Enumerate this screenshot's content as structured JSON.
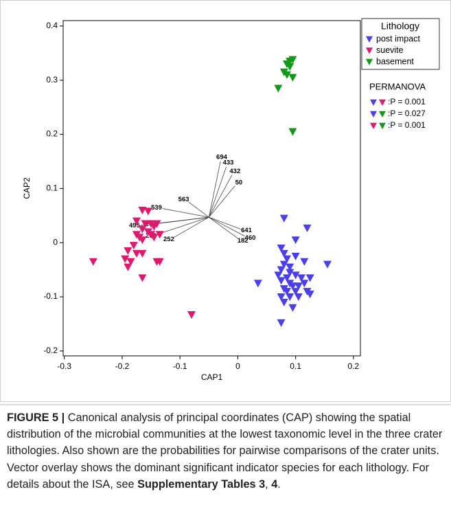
{
  "chart_data": {
    "type": "scatter",
    "xlabel": "CAP1",
    "ylabel": "CAP2",
    "xlim": [
      -0.302,
      0.212
    ],
    "ylim": [
      -0.209,
      0.41
    ],
    "xticks": [
      -0.3,
      -0.2,
      -0.1,
      0,
      0.1,
      0.2
    ],
    "yticks": [
      -0.2,
      -0.1,
      0,
      0.1,
      0.2,
      0.3,
      0.4
    ],
    "legend_title": "Lithology",
    "legend": "upper right outside",
    "series": [
      {
        "name": "post impact",
        "color": "#4a3ff0",
        "x": [
          0.08,
          0.12,
          0.1,
          0.155,
          0.075,
          0.08,
          0.085,
          0.1,
          0.115,
          0.08,
          0.09,
          0.075,
          0.09,
          0.07,
          0.085,
          0.1,
          0.11,
          0.125,
          0.035,
          0.075,
          0.09,
          0.095,
          0.105,
          0.115,
          0.08,
          0.085,
          0.1,
          0.12,
          0.125,
          0.075,
          0.09,
          0.08,
          0.105,
          0.095,
          0.075
        ],
        "values": [
          0.045,
          0.027,
          0.005,
          -0.04,
          -0.01,
          -0.02,
          -0.03,
          -0.025,
          -0.035,
          -0.04,
          -0.045,
          -0.05,
          -0.055,
          -0.06,
          -0.065,
          -0.06,
          -0.065,
          -0.065,
          -0.075,
          -0.07,
          -0.075,
          -0.08,
          -0.08,
          -0.075,
          -0.085,
          -0.09,
          -0.09,
          -0.09,
          -0.095,
          -0.1,
          -0.1,
          -0.11,
          -0.1,
          -0.12,
          -0.148
        ]
      },
      {
        "name": "suevite",
        "color": "#e0186e",
        "x": [
          -0.25,
          -0.165,
          -0.155,
          -0.175,
          -0.16,
          -0.15,
          -0.145,
          -0.14,
          -0.165,
          -0.155,
          -0.15,
          -0.135,
          -0.145,
          -0.175,
          -0.17,
          -0.165,
          -0.18,
          -0.19,
          -0.175,
          -0.165,
          -0.195,
          -0.185,
          -0.14,
          -0.135,
          -0.19,
          -0.165,
          -0.08
        ],
        "values": [
          -0.035,
          0.06,
          0.058,
          0.04,
          0.035,
          0.035,
          0.03,
          0.035,
          0.025,
          0.02,
          0.015,
          0.015,
          0.01,
          0.015,
          0.01,
          0.005,
          -0.005,
          -0.015,
          -0.02,
          -0.02,
          -0.03,
          -0.035,
          -0.035,
          -0.035,
          -0.045,
          -0.065,
          -0.133
        ]
      },
      {
        "name": "basement",
        "color": "#119a1a",
        "x": [
          0.09,
          0.095,
          0.085,
          0.09,
          0.08,
          0.085,
          0.095,
          0.07,
          0.095
        ],
        "values": [
          0.335,
          0.338,
          0.33,
          0.325,
          0.315,
          0.31,
          0.305,
          0.285,
          0.205
        ]
      }
    ],
    "vector_origin": [
      -0.05,
      0.047
    ],
    "vectors": [
      {
        "label": "694",
        "x": -0.03,
        "y": 0.15
      },
      {
        "label": "433",
        "x": -0.02,
        "y": 0.14
      },
      {
        "label": "432",
        "x": -0.01,
        "y": 0.125
      },
      {
        "label": "50",
        "x": -0.005,
        "y": 0.105
      },
      {
        "label": "563",
        "x": -0.085,
        "y": 0.075
      },
      {
        "label": "539",
        "x": -0.13,
        "y": 0.063
      },
      {
        "label": "277",
        "x": -0.14,
        "y": 0.035
      },
      {
        "label": "495",
        "x": -0.168,
        "y": 0.032
      },
      {
        "label": "202",
        "x": -0.14,
        "y": 0.015
      },
      {
        "label": "252",
        "x": -0.11,
        "y": 0.01
      },
      {
        "label": "641",
        "x": 0.005,
        "y": 0.025
      },
      {
        "label": "460",
        "x": 0.012,
        "y": 0.012
      },
      {
        "label": "182",
        "x": 0.0,
        "y": 0.008
      }
    ],
    "permanova": {
      "title": "PERMANOVA",
      "tests": [
        {
          "pair": [
            0,
            1
          ],
          "label": ":P = 0.001"
        },
        {
          "pair": [
            0,
            2
          ],
          "label": ":P = 0.027"
        },
        {
          "pair": [
            1,
            2
          ],
          "label": ":P = 0.001"
        }
      ]
    }
  },
  "caption": [
    {
      "text": "FIGURE 5 |",
      "bold": true
    },
    {
      "text": " Canonical analysis of principal coordinates (CAP) showing the spatial distribution of the microbial communities at the lowest taxonomic level in the three crater lithologies. Also shown are the probabilities for pairwise comparisons of the crater units. Vector overlay shows the dominant significant indicator species for each lithology. For details about the ISA, see "
    },
    {
      "text": "Supplementary Tables 3",
      "bold": true
    },
    {
      "text": ", "
    },
    {
      "text": "4",
      "bold": true
    },
    {
      "text": "."
    }
  ]
}
